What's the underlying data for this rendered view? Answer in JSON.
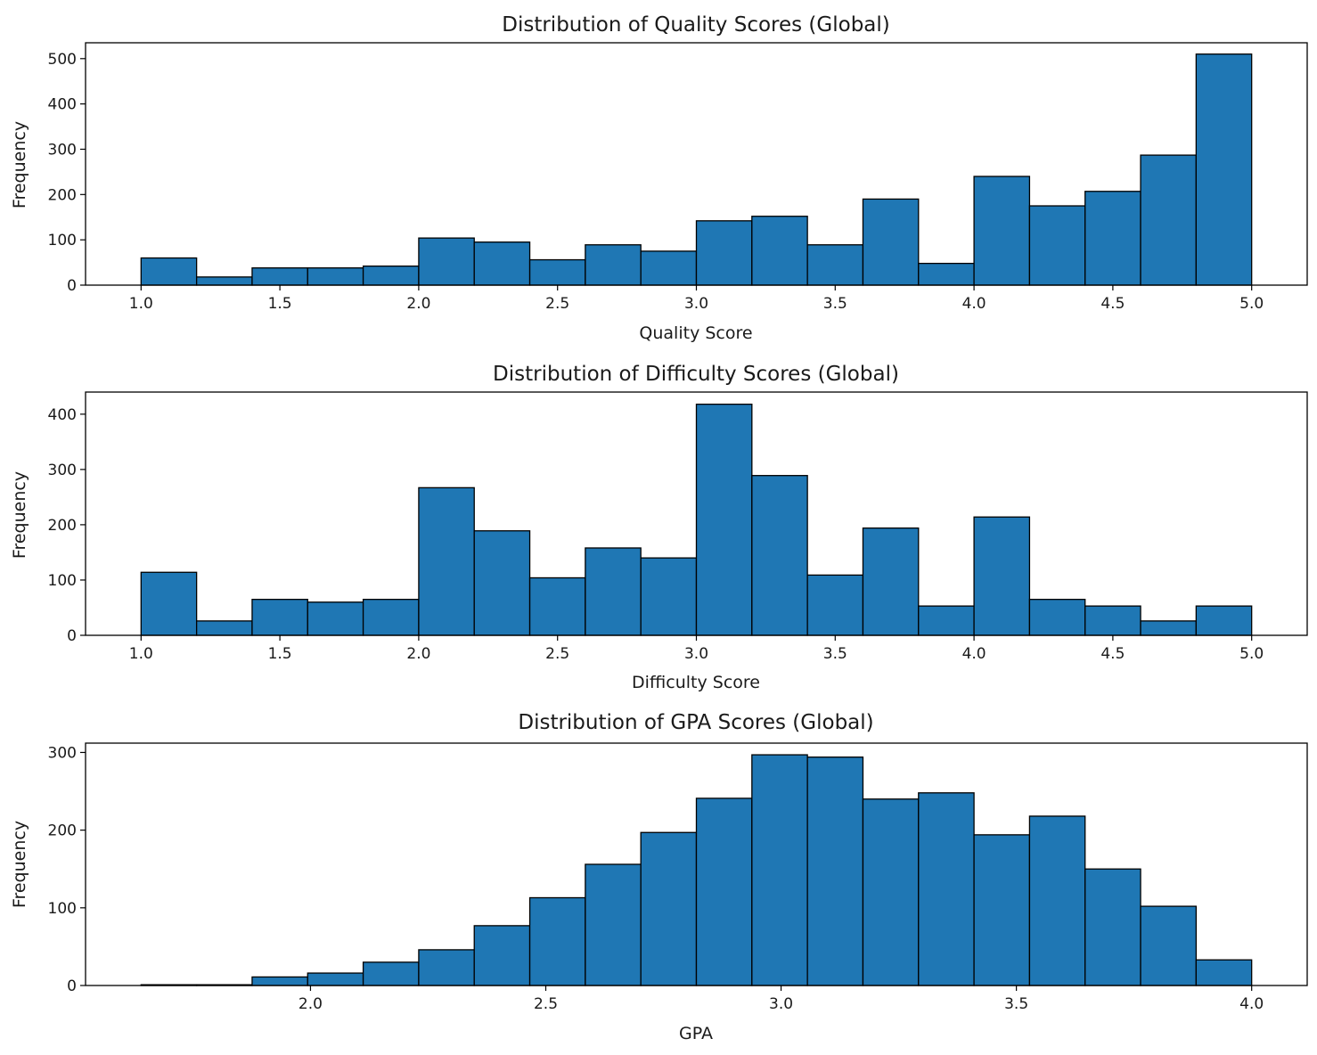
{
  "chart_data": [
    {
      "type": "bar",
      "title": "Distribution of Quality Scores (Global)",
      "xlabel": "Quality Score",
      "ylabel": "Frequency",
      "bar_color": "#1f77b4",
      "edge_color": "#000000",
      "bin_edges": [
        1.0,
        1.2,
        1.4,
        1.6,
        1.8,
        2.0,
        2.2,
        2.4,
        2.6,
        2.8,
        3.0,
        3.2,
        3.4,
        3.6,
        3.8,
        4.0,
        4.2,
        4.4,
        4.6,
        4.8,
        5.0
      ],
      "values": [
        60,
        18,
        38,
        38,
        42,
        104,
        95,
        56,
        89,
        75,
        142,
        152,
        89,
        190,
        48,
        240,
        175,
        207,
        287,
        510
      ],
      "xlim": [
        0.8,
        5.2
      ],
      "ylim": [
        0,
        535
      ],
      "xticks": [
        1.0,
        1.5,
        2.0,
        2.5,
        3.0,
        3.5,
        4.0,
        4.5,
        5.0
      ],
      "xtick_labels": [
        "1.0",
        "1.5",
        "2.0",
        "2.5",
        "3.0",
        "3.5",
        "4.0",
        "4.5",
        "5.0"
      ],
      "yticks": [
        0,
        100,
        200,
        300,
        400,
        500
      ],
      "ytick_labels": [
        "0",
        "100",
        "200",
        "300",
        "400",
        "500"
      ],
      "grid": false
    },
    {
      "type": "bar",
      "title": "Distribution of Difficulty Scores (Global)",
      "xlabel": "Difficulty Score",
      "ylabel": "Frequency",
      "bar_color": "#1f77b4",
      "edge_color": "#000000",
      "bin_edges": [
        1.0,
        1.2,
        1.4,
        1.6,
        1.8,
        2.0,
        2.2,
        2.4,
        2.6,
        2.8,
        3.0,
        3.2,
        3.4,
        3.6,
        3.8,
        4.0,
        4.2,
        4.4,
        4.6,
        4.8,
        5.0
      ],
      "values": [
        114,
        26,
        65,
        60,
        65,
        267,
        189,
        104,
        158,
        140,
        418,
        289,
        109,
        194,
        53,
        214,
        65,
        53,
        26,
        53
      ],
      "xlim": [
        0.8,
        5.2
      ],
      "ylim": [
        0,
        440
      ],
      "xticks": [
        1.0,
        1.5,
        2.0,
        2.5,
        3.0,
        3.5,
        4.0,
        4.5,
        5.0
      ],
      "xtick_labels": [
        "1.0",
        "1.5",
        "2.0",
        "2.5",
        "3.0",
        "3.5",
        "4.0",
        "4.5",
        "5.0"
      ],
      "yticks": [
        0,
        100,
        200,
        300,
        400
      ],
      "ytick_labels": [
        "0",
        "100",
        "200",
        "300",
        "400"
      ],
      "grid": false
    },
    {
      "type": "bar",
      "title": "Distribution of GPA Scores (Global)",
      "xlabel": "GPA",
      "ylabel": "Frequency",
      "bar_color": "#1f77b4",
      "edge_color": "#000000",
      "bin_edges": [
        1.64,
        1.758,
        1.876,
        1.994,
        2.112,
        2.23,
        2.348,
        2.466,
        2.584,
        2.702,
        2.82,
        2.938,
        3.056,
        3.174,
        3.292,
        3.41,
        3.528,
        3.646,
        3.764,
        3.882,
        4.0
      ],
      "values": [
        1,
        1,
        11,
        16,
        30,
        46,
        77,
        113,
        156,
        197,
        241,
        297,
        294,
        240,
        248,
        194,
        218,
        150,
        102,
        33
      ],
      "xlim": [
        1.522,
        4.118
      ],
      "ylim": [
        0,
        312
      ],
      "xticks": [
        2.0,
        2.5,
        3.0,
        3.5,
        4.0
      ],
      "xtick_labels": [
        "2.0",
        "2.5",
        "3.0",
        "3.5",
        "4.0"
      ],
      "yticks": [
        0,
        100,
        200,
        300
      ],
      "ytick_labels": [
        "0",
        "100",
        "200",
        "300"
      ],
      "grid": false
    }
  ]
}
